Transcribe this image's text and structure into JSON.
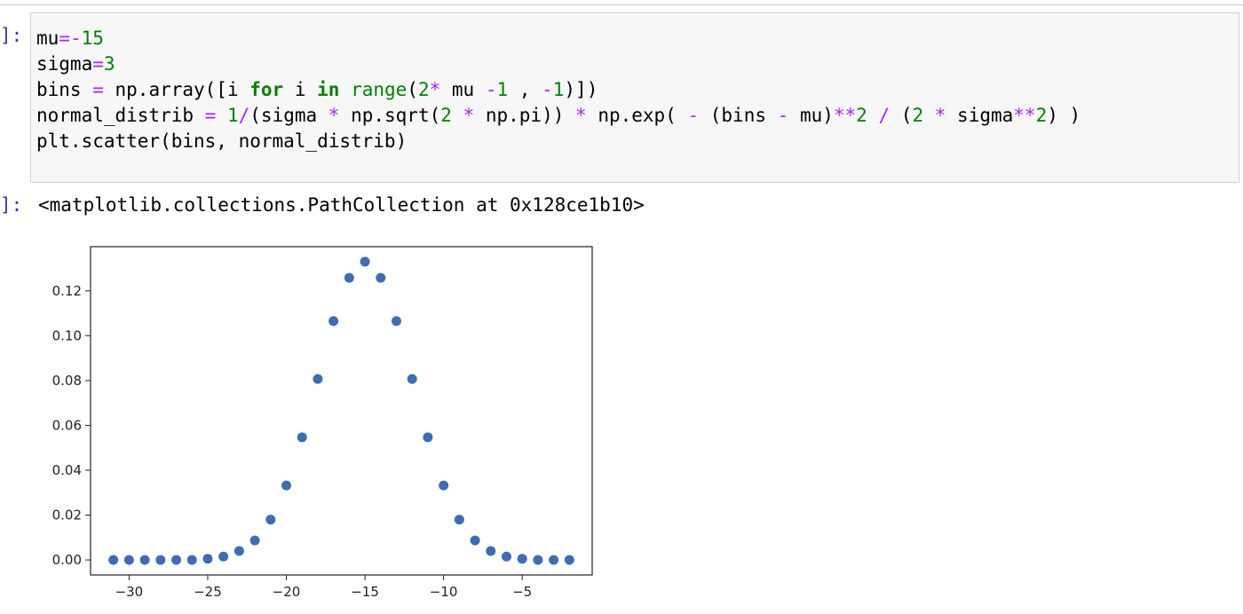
{
  "cells": {
    "input_prompt": "]:",
    "output_prompt": "]:",
    "code": {
      "line1": {
        "a": "mu",
        "b": "=-",
        "c": "15"
      },
      "line2": {
        "a": "sigma",
        "b": "=",
        "c": "3"
      },
      "line3": {
        "t1": "bins ",
        "t2": "=",
        "t3": " np.array([i ",
        "t4": "for",
        "t5": " i ",
        "t6": "in",
        "t7": " ",
        "t8": "range",
        "t9": "(",
        "t10": "2",
        "t11": "*",
        "t12": " mu ",
        "t13": "-",
        "t14": "1",
        "t15": " , ",
        "t16": "-",
        "t17": "1",
        "t18": ")])"
      },
      "line4": {
        "t1": "normal_distrib ",
        "t2": "=",
        "t3": " ",
        "t4": "1",
        "t5": "/",
        "t6": "(sigma ",
        "t7": "*",
        "t8": " np.sqrt(",
        "t9": "2",
        "t10": " ",
        "t11": "*",
        "t12": " np.pi)) ",
        "t13": "*",
        "t14": " np.exp( ",
        "t15": "-",
        "t16": " (bins ",
        "t17": "-",
        "t18": " mu)",
        "t19": "**",
        "t20": "2",
        "t21": " ",
        "t22": "/",
        "t23": " (",
        "t24": "2",
        "t25": " ",
        "t26": "*",
        "t27": " sigma",
        "t28": "**",
        "t29": "2",
        "t30": ") )"
      },
      "line5": {
        "a": "plt.scatter(bins, normal_distrib)"
      }
    },
    "output_text": "<matplotlib.collections.PathCollection at 0x128ce1b10>"
  },
  "colors": {
    "marker": "#3f6db3",
    "prompt": "#303f9f",
    "operator": "#aa22ff",
    "number": "#008000"
  },
  "chart_data": {
    "type": "scatter",
    "xlim": [
      -32.45,
      -0.55
    ],
    "ylim": [
      -0.0067,
      0.1397
    ],
    "xticks": [
      -30,
      -25,
      -20,
      -15,
      -10,
      -5
    ],
    "xtick_labels": [
      "−30",
      "−25",
      "−20",
      "−15",
      "−10",
      "−5"
    ],
    "yticks": [
      0.0,
      0.02,
      0.04,
      0.06,
      0.08,
      0.1,
      0.12
    ],
    "ytick_labels": [
      "0.00",
      "0.02",
      "0.04",
      "0.06",
      "0.08",
      "0.10",
      "0.12"
    ],
    "grid": false,
    "legend": "none",
    "x": [
      -31,
      -30,
      -29,
      -28,
      -27,
      -26,
      -25,
      -24,
      -23,
      -22,
      -21,
      -20,
      -19,
      -18,
      -17,
      -16,
      -15,
      -14,
      -13,
      -12,
      -11,
      -10,
      -9,
      -8,
      -7,
      -6,
      -5,
      -4,
      -3,
      -2
    ],
    "y": [
      0.0,
      0.0,
      0.0,
      0.0,
      0.0,
      0.0,
      0.0005,
      0.0015,
      0.004,
      0.0087,
      0.018,
      0.0332,
      0.0547,
      0.0807,
      0.1065,
      0.1258,
      0.133,
      0.1258,
      0.1065,
      0.0807,
      0.0547,
      0.0332,
      0.018,
      0.0087,
      0.004,
      0.0015,
      0.0005,
      0.0,
      0.0,
      0.0
    ]
  }
}
